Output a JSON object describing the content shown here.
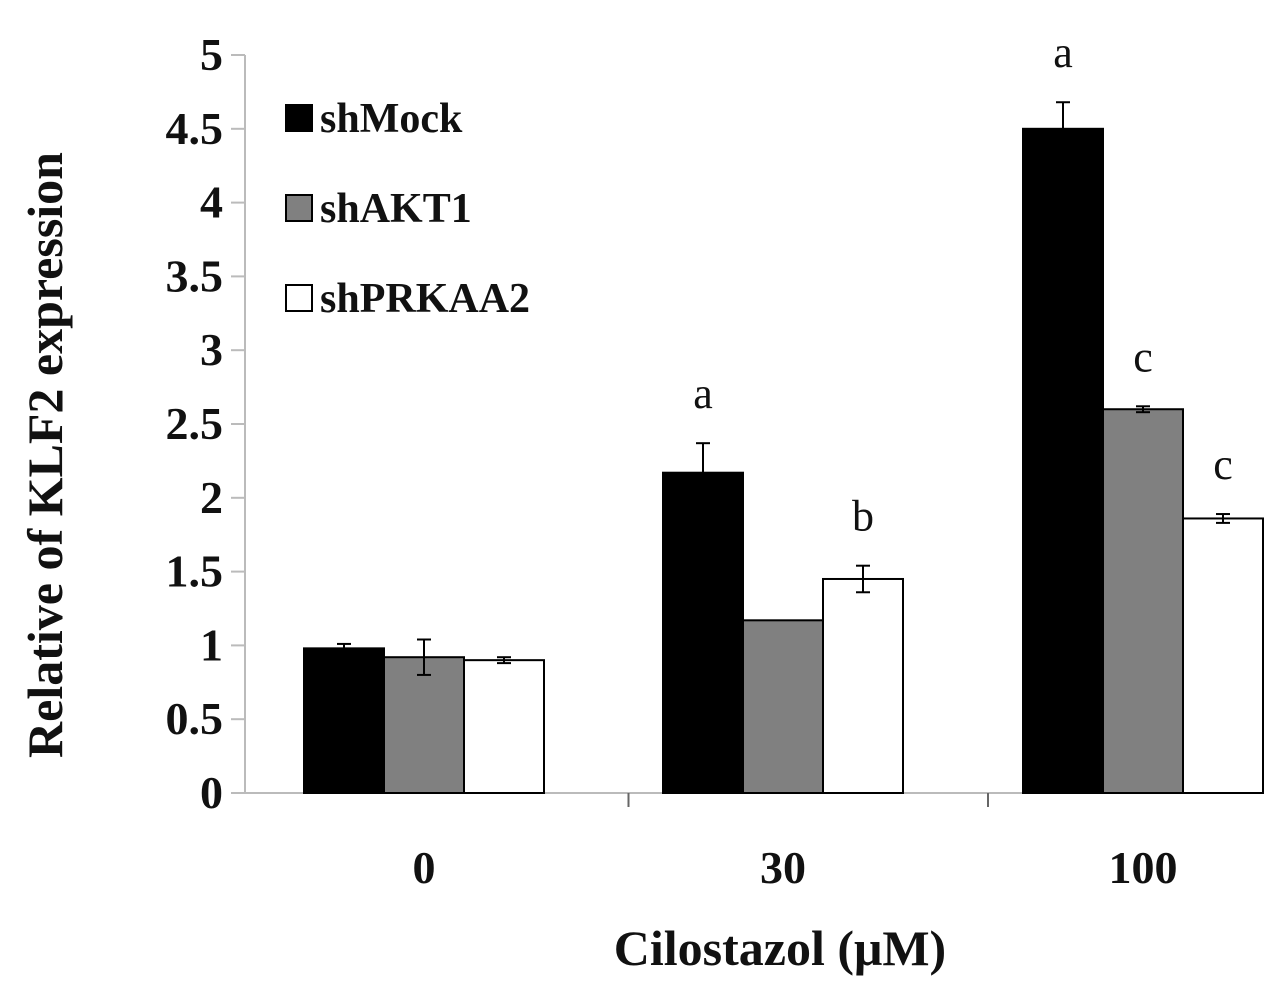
{
  "chart_data": {
    "type": "bar",
    "title": "",
    "xlabel": "Cilostazol (μM)",
    "ylabel": "Relative of KLF2 expression",
    "ylim": [
      0,
      5
    ],
    "yticks": [
      "0",
      "0.5",
      "1",
      "1.5",
      "2",
      "2.5",
      "3",
      "3.5",
      "4",
      "4.5",
      "5"
    ],
    "categories": [
      "0",
      "30",
      "100"
    ],
    "legend_position": "top-left",
    "series": [
      {
        "name": "shMock",
        "color": "#000000",
        "values": [
          0.98,
          2.17,
          4.5
        ],
        "errors": [
          0.03,
          0.2,
          0.18
        ],
        "annotations": [
          "",
          "a",
          "a"
        ]
      },
      {
        "name": "shAKT1",
        "color": "#808080",
        "values": [
          0.92,
          1.17,
          2.6
        ],
        "errors": [
          0.12,
          0.0,
          0.02
        ],
        "annotations": [
          "",
          "",
          "c"
        ]
      },
      {
        "name": "shPRKAA2",
        "color": "#ffffff",
        "values": [
          0.9,
          1.45,
          1.86
        ],
        "errors": [
          0.02,
          0.09,
          0.03
        ],
        "annotations": [
          "",
          "b",
          "c"
        ]
      }
    ]
  }
}
